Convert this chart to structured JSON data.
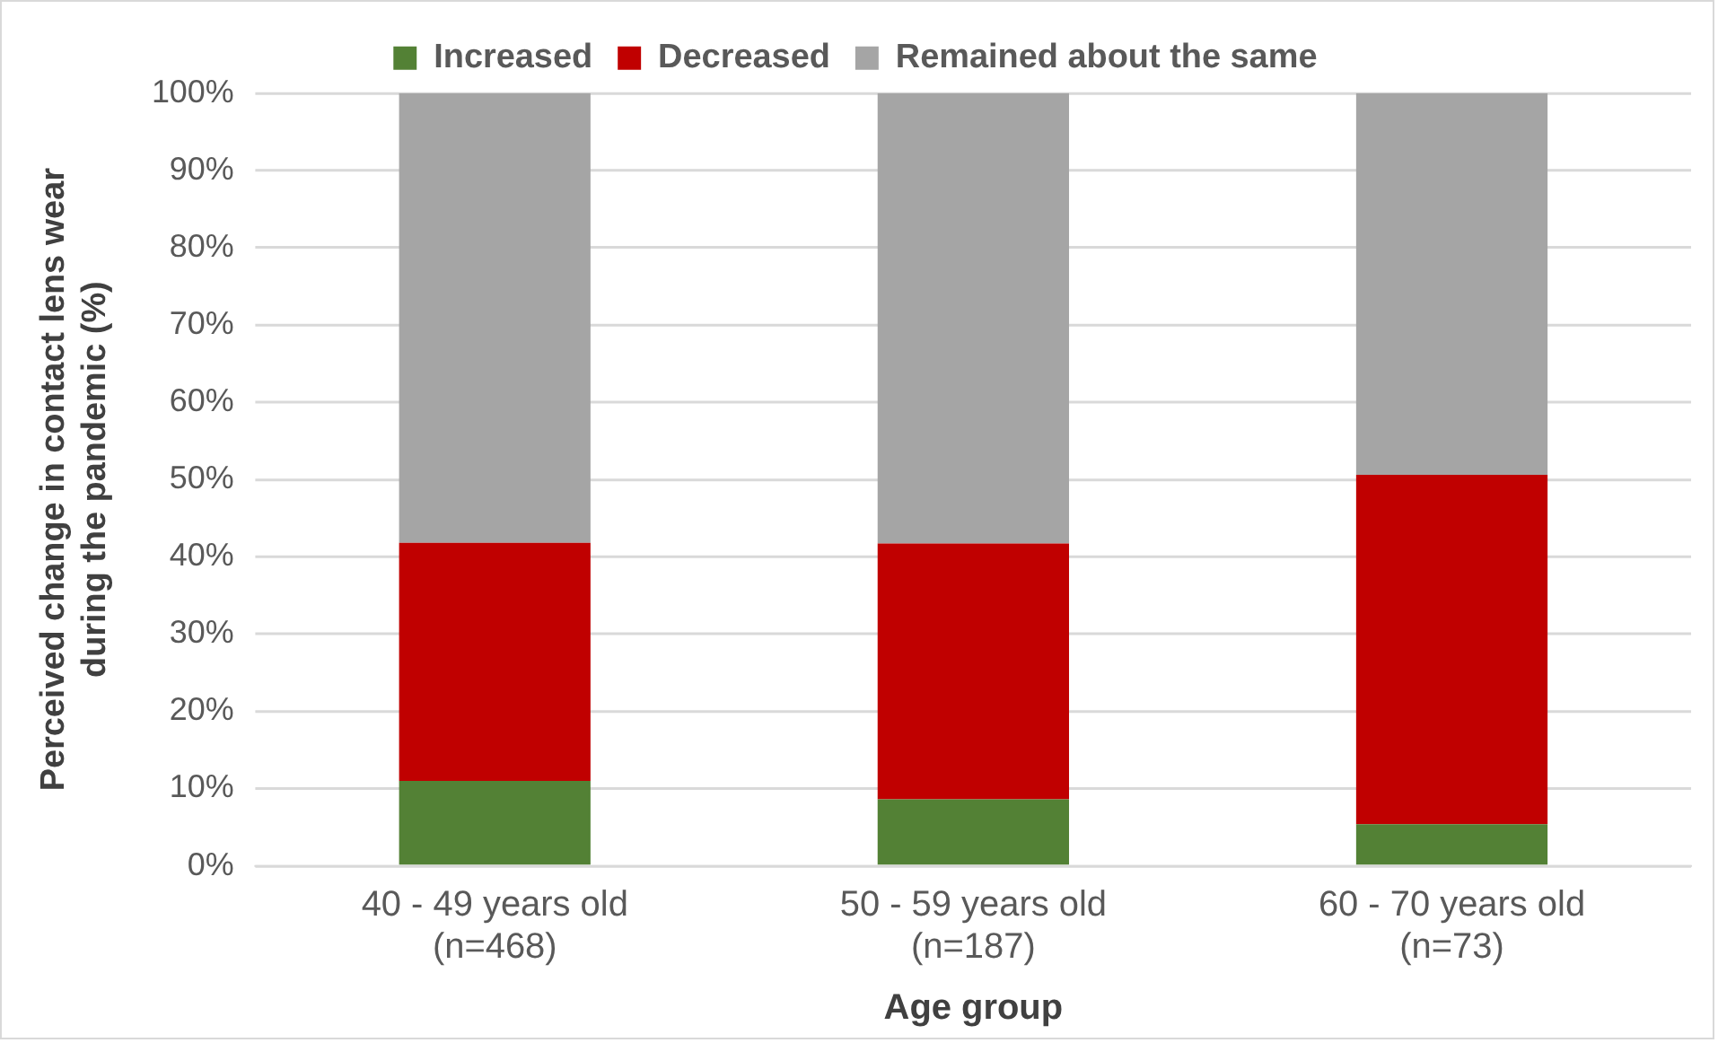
{
  "chart_data": {
    "type": "bar",
    "stacked": true,
    "xlabel": "Age group",
    "ylabel": "Perceived change in contact lens wear\nduring the pandemic (%)",
    "categories": [
      "40 - 49 years old\n(n=468)",
      "50 - 59 years old\n(n=187)",
      "60 - 70 years old\n(n=73)"
    ],
    "series": [
      {
        "name": "Increased",
        "color": "#538135",
        "values": [
          11.0,
          8.6,
          5.4
        ]
      },
      {
        "name": "Decreased",
        "color": "#c00000",
        "values": [
          30.8,
          33.1,
          45.2
        ]
      },
      {
        "name": "Remained about the same",
        "color": "#a5a5a5",
        "values": [
          58.2,
          58.3,
          49.4
        ]
      }
    ],
    "ylim": [
      0,
      100
    ],
    "yticks": [
      {
        "value": 0,
        "label": "0%"
      },
      {
        "value": 10,
        "label": "10%"
      },
      {
        "value": 20,
        "label": "20%"
      },
      {
        "value": 30,
        "label": "30%"
      },
      {
        "value": 40,
        "label": "40%"
      },
      {
        "value": 50,
        "label": "50%"
      },
      {
        "value": 60,
        "label": "60%"
      },
      {
        "value": 70,
        "label": "70%"
      },
      {
        "value": 80,
        "label": "80%"
      },
      {
        "value": 90,
        "label": "90%"
      },
      {
        "value": 100,
        "label": "100%"
      }
    ],
    "grid": "y",
    "legend": "top"
  }
}
